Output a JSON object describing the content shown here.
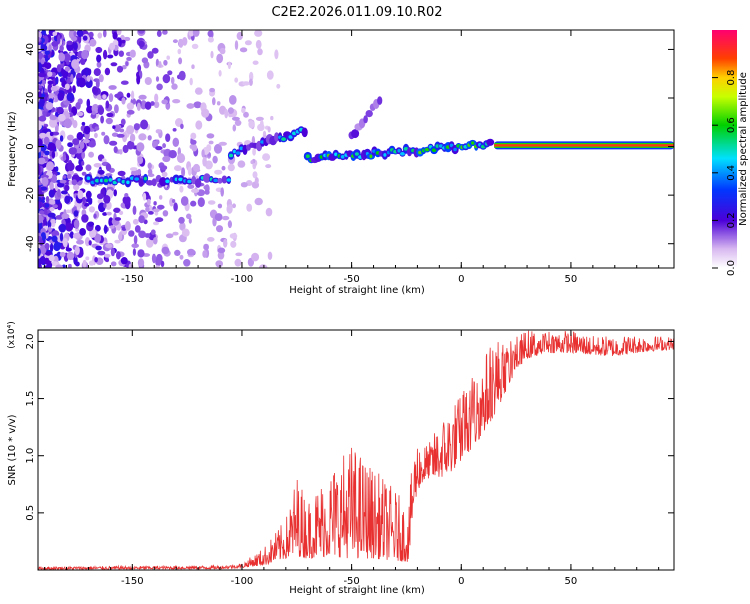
{
  "title": "C2E2.2026.011.09.10.R02",
  "colors": {
    "snr_line": "#e83030",
    "axis": "#000000",
    "background": "#ffffff"
  },
  "chart_data": [
    {
      "type": "heatmap",
      "name": "spectrogram",
      "xlabel": "Height of straight line (km)",
      "ylabel": "Frequency (Hz)",
      "xlim": [
        -193,
        97
      ],
      "ylim": [
        -50,
        48
      ],
      "xticks": [
        -150,
        -100,
        -50,
        0,
        50
      ],
      "yticks": [
        -40,
        -20,
        0,
        20,
        40
      ],
      "xtick_labels": [
        "-150",
        "-100",
        "-50",
        "0",
        "50"
      ],
      "ytick_labels": [
        "-40",
        "-20",
        "0",
        "20",
        "40"
      ],
      "colorbar": {
        "label": "Normalized spectral amplitude",
        "ticks": [
          0.0,
          0.2,
          0.4,
          0.6,
          0.8
        ],
        "tick_labels": [
          "0.0",
          "0.2",
          "0.4",
          "0.6",
          "0.8"
        ],
        "range": [
          0,
          1
        ]
      },
      "features": [
        {
          "name": "steady tone",
          "x_from": 15,
          "x_to": 97,
          "frequency": 0.5,
          "amplitude": 0.9
        },
        {
          "name": "low band",
          "x_from": -170,
          "x_to": -105,
          "frequency": -14,
          "amplitude": 0.45
        },
        {
          "name": "rising band",
          "x_from": -105,
          "x_to": -70,
          "frequency_from": -3,
          "frequency_to": 7,
          "amplitude": 0.45
        },
        {
          "name": "upper streak",
          "x_from": -50,
          "x_to": -37,
          "frequency_from": 4,
          "frequency_to": 20,
          "amplitude": 0.3
        },
        {
          "name": "converging band",
          "x_from": -70,
          "x_to": 14,
          "frequency_from": -5,
          "frequency_to": 1,
          "amplitude": 0.55
        }
      ]
    },
    {
      "type": "line",
      "name": "snr",
      "xlabel": "Height of straight line (km)",
      "ylabel": "SNR (10 * v/v)",
      "y_multiplier": "(x10⁴)",
      "xlim": [
        -193,
        97
      ],
      "ylim": [
        0,
        2.1
      ],
      "xticks": [
        -150,
        -100,
        -50,
        0,
        50
      ],
      "yticks": [
        0.5,
        1.0,
        1.5,
        2.0
      ],
      "xtick_labels": [
        "-150",
        "-100",
        "-50",
        "0",
        "50"
      ],
      "ytick_labels": [
        "0.5",
        "1.0",
        "1.5",
        "2.0"
      ],
      "envelope": {
        "x": [
          -193,
          -110,
          -100,
          -90,
          -80,
          -75,
          -70,
          -60,
          -50,
          -40,
          -30,
          -24,
          -22,
          -20,
          -15,
          -10,
          -5,
          0,
          5,
          10,
          15,
          20,
          25,
          30,
          40,
          50,
          60,
          70,
          80,
          90,
          97
        ],
        "base": [
          0.005,
          0.01,
          0.02,
          0.04,
          0.1,
          0.12,
          0.1,
          0.12,
          0.1,
          0.1,
          0.08,
          0.07,
          0.45,
          0.7,
          0.8,
          0.8,
          0.85,
          0.95,
          1.05,
          1.2,
          1.35,
          1.55,
          1.75,
          1.85,
          1.9,
          1.9,
          1.88,
          1.87,
          1.9,
          1.92,
          1.93
        ],
        "peak": [
          0.03,
          0.04,
          0.06,
          0.2,
          0.45,
          0.85,
          0.62,
          0.9,
          1.12,
          0.9,
          0.7,
          0.55,
          1.05,
          1.15,
          1.1,
          1.3,
          1.45,
          1.55,
          1.7,
          1.85,
          2.1,
          1.95,
          2.05,
          2.1,
          2.1,
          2.1,
          2.05,
          2.05,
          2.06,
          2.05,
          2.04
        ]
      }
    }
  ]
}
